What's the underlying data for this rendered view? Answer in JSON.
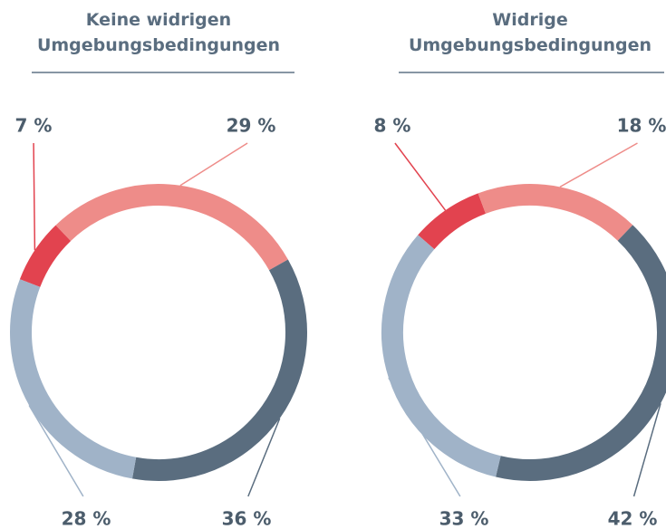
{
  "chart_data": [
    {
      "type": "donut",
      "title": [
        "Keine widrigen",
        "Umgebungsbedingungen"
      ],
      "values": [
        7,
        29,
        36,
        28
      ],
      "value_labels": [
        "7 %",
        "29 %",
        "36 %",
        "28 %"
      ],
      "colors": [
        "#e2434f",
        "#ee8c89",
        "#5a6d7f",
        "#a0b3c8"
      ]
    },
    {
      "type": "donut",
      "title": [
        "Widrige",
        "Umgebungsbedingungen"
      ],
      "values": [
        8,
        18,
        42,
        33
      ],
      "value_labels": [
        "8 %",
        "18 %",
        "42 %",
        "33 %"
      ],
      "colors": [
        "#e2434f",
        "#ee8c89",
        "#5a6d7f",
        "#a0b3c8"
      ]
    }
  ]
}
